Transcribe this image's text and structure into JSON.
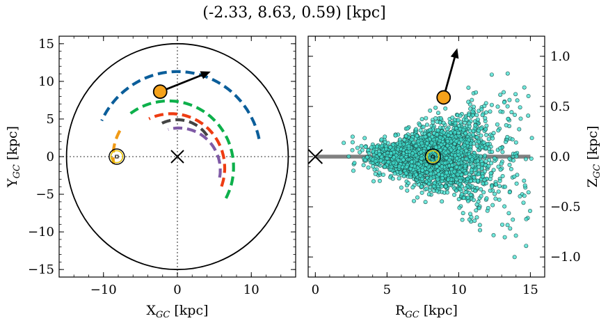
{
  "title": "(-2.33, 8.63, 0.59) [kpc]",
  "chart_data": [
    {
      "type": "line",
      "xlabel": "X",
      "xlabel_sub": "GC",
      "xlabel_unit": " [kpc]",
      "ylabel": "Y",
      "ylabel_sub": "GC",
      "ylabel_unit": " [kpc]",
      "xlim": [
        -16,
        16
      ],
      "ylim": [
        -16,
        16
      ],
      "xticks": [
        -10,
        0,
        10
      ],
      "yticks": [
        -15,
        -10,
        -5,
        0,
        5,
        10,
        15
      ],
      "xtick_labels": [
        "−10",
        "0",
        "10"
      ],
      "ytick_labels": [
        "−15",
        "−10",
        "−5",
        "0",
        "5",
        "10",
        "15"
      ],
      "boundary_circle_radius": 15,
      "galactic_center": [
        0,
        0
      ],
      "sun": [
        -8.2,
        0
      ],
      "star": [
        -2.33,
        8.63
      ],
      "velocity_arrow_end": [
        4.5,
        11.3
      ],
      "arms": [
        {
          "color": "#0b5e9a",
          "radius": 11.3,
          "start_deg": 12,
          "end_deg": 155
        },
        {
          "color": "#0db04b",
          "radius": 8.8,
          "start_deg": -28,
          "end_deg": 128,
          "center": [
            -1.2,
            -1.4
          ]
        },
        {
          "color": "#f09a16",
          "radius": 6.9,
          "start_deg": 150,
          "end_deg": 188,
          "center": [
            -1.8,
            0
          ]
        },
        {
          "color": "#ee3c12",
          "radius": 7.2,
          "start_deg": -20,
          "end_deg": 115,
          "center": [
            -0.8,
            -1.5
          ]
        },
        {
          "color": "#7f5aa6",
          "radius": 5.6,
          "start_deg": -10,
          "end_deg": 105,
          "center": [
            0.2,
            -1.8
          ]
        },
        {
          "color": "#444444",
          "radius": 4.9,
          "start_deg": 35,
          "end_deg": 120,
          "center": [
            0,
            0
          ]
        }
      ]
    },
    {
      "type": "scatter",
      "xlabel": "R",
      "xlabel_sub": "GC",
      "xlabel_unit": " [kpc]",
      "ylabel": "Z",
      "ylabel_sub": "GC",
      "ylabel_unit": " [kpc]",
      "xlim": [
        -0.5,
        16
      ],
      "ylim": [
        -1.2,
        1.2
      ],
      "xticks": [
        0,
        5,
        10,
        15
      ],
      "yticks": [
        -1.0,
        -0.5,
        0.0,
        0.5,
        1.0
      ],
      "xtick_labels": [
        "0",
        "5",
        "10",
        "15"
      ],
      "ytick_labels": [
        "−1.0",
        "−0.5",
        "0.0",
        "0.5",
        "1.0"
      ],
      "disk_line": [
        0,
        15
      ],
      "galactic_center": [
        0,
        0
      ],
      "sun": [
        8.2,
        0
      ],
      "star": [
        8.95,
        0.59
      ],
      "velocity_arrow_end": [
        9.9,
        1.08
      ],
      "point_color": "#40e0d0",
      "point_count": 2600
    }
  ]
}
